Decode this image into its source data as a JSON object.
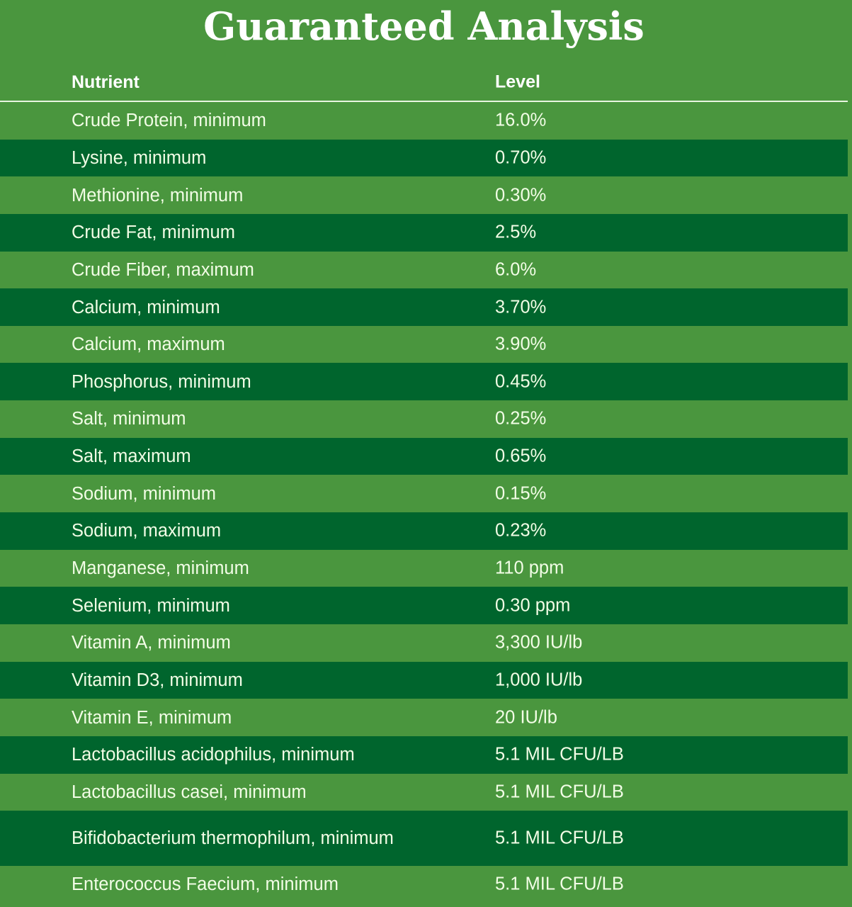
{
  "title": "Guaranteed Analysis",
  "headers": {
    "nutrient": "Nutrient",
    "level": "Level"
  },
  "rows": [
    {
      "nutrient": "Crude Protein, minimum",
      "level": "16.0%"
    },
    {
      "nutrient": "Lysine, minimum",
      "level": "0.70%"
    },
    {
      "nutrient": "Methionine, minimum",
      "level": "0.30%"
    },
    {
      "nutrient": "Crude Fat, minimum",
      "level": "2.5%"
    },
    {
      "nutrient": "Crude Fiber, maximum",
      "level": "6.0%"
    },
    {
      "nutrient": "Calcium, minimum",
      "level": "3.70%"
    },
    {
      "nutrient": "Calcium, maximum",
      "level": "3.90%"
    },
    {
      "nutrient": "Phosphorus, minimum",
      "level": "0.45%"
    },
    {
      "nutrient": "Salt, minimum",
      "level": "0.25%"
    },
    {
      "nutrient": "Salt, maximum",
      "level": "0.65%"
    },
    {
      "nutrient": "Sodium, minimum",
      "level": "0.15%"
    },
    {
      "nutrient": "Sodium, maximum",
      "level": "0.23%"
    },
    {
      "nutrient": "Manganese, minimum",
      "level": "110 ppm"
    },
    {
      "nutrient": "Selenium, minimum",
      "level": "0.30 ppm"
    },
    {
      "nutrient": "Vitamin A, minimum",
      "level": "3,300 IU/lb"
    },
    {
      "nutrient": "Vitamin D3, minimum",
      "level": "1,000 IU/lb"
    },
    {
      "nutrient": "Vitamin E, minimum",
      "level": "20 IU/lb"
    },
    {
      "nutrient": "Lactobacillus acidophilus, minimum",
      "level": "5.1 MIL CFU/LB"
    },
    {
      "nutrient": "Lactobacillus casei, minimum",
      "level": "5.1 MIL CFU/LB"
    },
    {
      "nutrient": "Bifidobacterium thermophilum, minimum",
      "level": "5.1 MIL CFU/LB"
    },
    {
      "nutrient": "Enterococcus Faecium, minimum",
      "level": "5.1 MIL CFU/LB"
    }
  ]
}
